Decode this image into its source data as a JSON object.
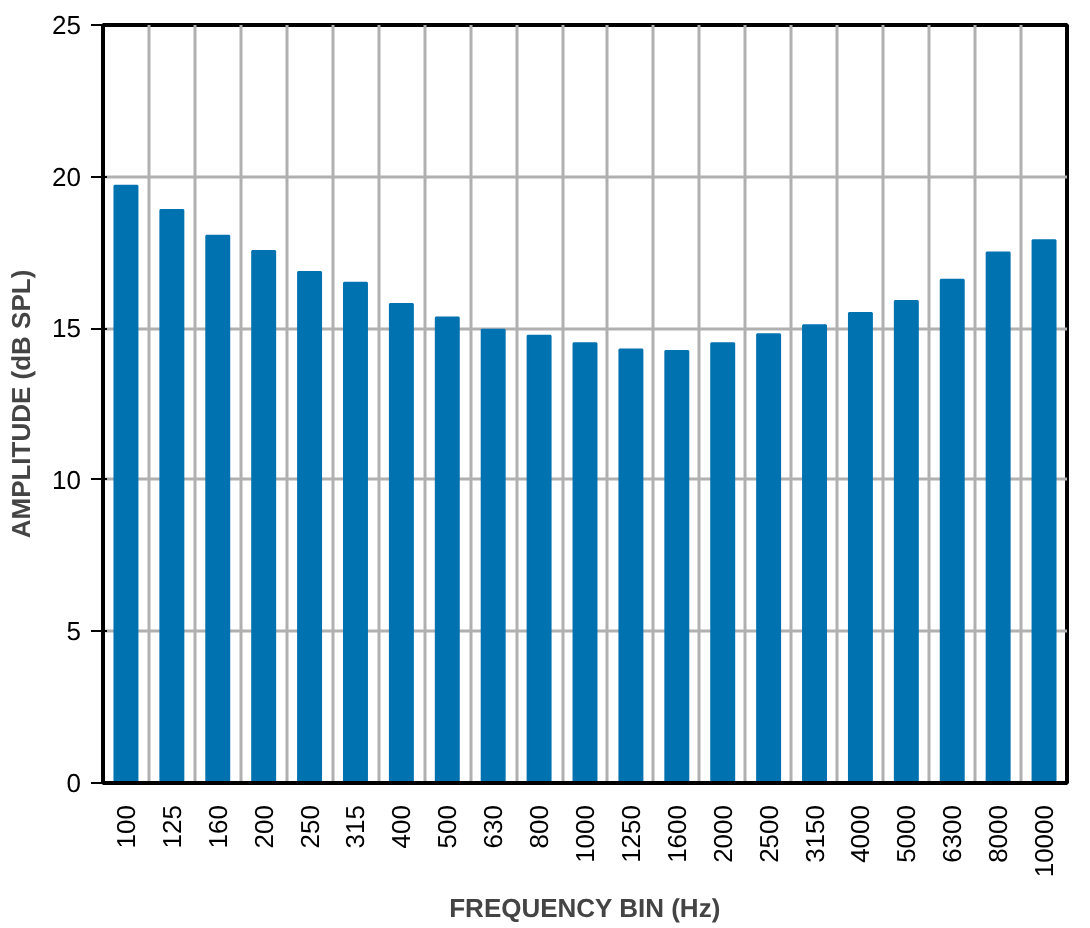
{
  "chart_data": {
    "type": "bar",
    "xlabel": "FREQUENCY BIN (Hz)",
    "ylabel": "AMPLITUDE (dB SPL)",
    "categories": [
      "100",
      "125",
      "160",
      "200",
      "250",
      "315",
      "400",
      "500",
      "630",
      "800",
      "1000",
      "1250",
      "1600",
      "2000",
      "2500",
      "3150",
      "4000",
      "5000",
      "6300",
      "8000",
      "10000"
    ],
    "values": [
      19.7,
      18.9,
      18.05,
      17.55,
      16.85,
      16.5,
      15.8,
      15.35,
      14.95,
      14.75,
      14.5,
      14.3,
      14.25,
      14.5,
      14.8,
      15.1,
      15.5,
      15.9,
      16.6,
      17.5,
      17.9
    ],
    "color": "#0072b0",
    "ylim": [
      0,
      25
    ],
    "yticks": [
      0,
      5,
      10,
      15,
      20,
      25
    ],
    "grid": true
  }
}
